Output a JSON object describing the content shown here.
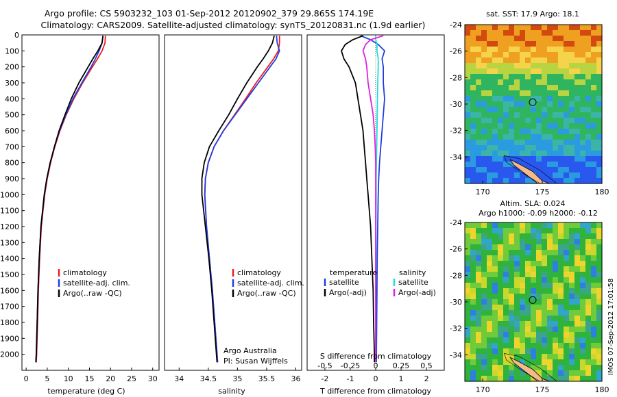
{
  "header": {
    "title_line1": "Argo profile: CS 5903232_103 01-Sep-2012 20120902_379 29.865S 174.19E",
    "title_line2": "Climatology: CARS2009. Satellite-adjusted climatology: synTS_20120831.nc (1.9d earlier)"
  },
  "side_label": "IMOS 07-Sep-2012 17:01:58",
  "colors": {
    "red": "#ee1c1c",
    "blue": "#1f3de0",
    "black": "#000000",
    "cyan": "#22dddd",
    "magenta": "#e020e0"
  },
  "chart_data": [
    {
      "type": "line",
      "panel": "temperature",
      "xlabel": "temperature (deg C)",
      "xlim": [
        -1,
        31.5
      ],
      "ylim": [
        2100,
        0
      ],
      "xticks": [
        "0",
        "5",
        "10",
        "15",
        "20",
        "25",
        "30"
      ],
      "yticks": [
        "0",
        "100",
        "200",
        "300",
        "400",
        "500",
        "600",
        "700",
        "800",
        "900",
        "1000",
        "1100",
        "1200",
        "1300",
        "1400",
        "1500",
        "1600",
        "1700",
        "1800",
        "1900",
        "2000"
      ],
      "legend": [
        "climatology",
        "satellite-adj. clim.",
        "Argo(..raw -QC)"
      ],
      "depth": [
        5,
        50,
        100,
        150,
        200,
        300,
        400,
        500,
        600,
        700,
        800,
        900,
        1000,
        1200,
        1400,
        1600,
        1800,
        2000,
        2050
      ],
      "series": [
        {
          "name": "climatology",
          "color": "red",
          "values": [
            18.8,
            18.7,
            18.0,
            16.9,
            15.7,
            13.4,
            11.3,
            9.5,
            8.0,
            6.8,
            5.8,
            5.0,
            4.4,
            3.6,
            3.2,
            2.9,
            2.7,
            2.5,
            2.4
          ]
        },
        {
          "name": "satellite-adj. clim.",
          "color": "blue",
          "values": [
            18.2,
            18.0,
            17.3,
            16.4,
            15.4,
            13.2,
            11.1,
            9.4,
            7.9,
            6.7,
            5.7,
            4.9,
            4.3,
            3.5,
            3.1,
            2.8,
            2.6,
            2.4,
            2.3
          ]
        },
        {
          "name": "Argo(..raw -QC)",
          "color": "black",
          "values": [
            18.2,
            18.0,
            17.0,
            15.8,
            14.7,
            12.5,
            10.7,
            9.2,
            7.8,
            6.7,
            5.7,
            4.9,
            4.3,
            3.5,
            3.1,
            2.8,
            2.6,
            2.4,
            2.3
          ]
        }
      ]
    },
    {
      "type": "line",
      "panel": "salinity",
      "xlabel": "salinity",
      "xlim": [
        33.75,
        36.1
      ],
      "ylim": [
        2100,
        0
      ],
      "xticks": [
        "34",
        "34.5",
        "35",
        "35.5",
        "36"
      ],
      "legend": [
        "climatology",
        "satellite-adj. clim.",
        "Argo(..raw -QC)"
      ],
      "annotations": [
        "Argo Australia",
        "PI: Susan Wijffels"
      ],
      "depth": [
        5,
        50,
        100,
        150,
        200,
        300,
        400,
        500,
        600,
        700,
        800,
        900,
        1000,
        1200,
        1400,
        1600,
        1800,
        2000,
        2050
      ],
      "series": [
        {
          "name": "climatology",
          "color": "red",
          "values": [
            35.72,
            35.72,
            35.7,
            35.62,
            35.52,
            35.32,
            35.14,
            34.95,
            34.76,
            34.6,
            34.5,
            34.45,
            34.44,
            34.47,
            34.52,
            34.57,
            34.61,
            34.65,
            34.66
          ]
        },
        {
          "name": "satellite-adj. clim.",
          "color": "blue",
          "values": [
            35.67,
            35.68,
            35.72,
            35.66,
            35.56,
            35.36,
            35.16,
            34.96,
            34.76,
            34.6,
            34.5,
            34.45,
            34.44,
            34.47,
            34.52,
            34.57,
            34.61,
            34.65,
            34.66
          ]
        },
        {
          "name": "Argo(..raw -QC)",
          "color": "black",
          "values": [
            35.63,
            35.6,
            35.53,
            35.44,
            35.34,
            35.16,
            35.0,
            34.85,
            34.68,
            34.52,
            34.43,
            34.39,
            34.39,
            34.45,
            34.51,
            34.56,
            34.6,
            34.64,
            34.65
          ]
        }
      ]
    },
    {
      "type": "line",
      "panel": "difference",
      "xlabel": "T difference from climatology",
      "xlabel_top": "S difference from climatology",
      "xlim": [
        -2.7,
        2.7
      ],
      "ylim": [
        2100,
        0
      ],
      "xticks": [
        "-2",
        "-1",
        "0",
        "1",
        "2"
      ],
      "xticks_top": [
        "-0.5",
        "-0.25",
        "0",
        "0.25",
        "0.5"
      ],
      "legend_headers": [
        "temperature",
        "salinity"
      ],
      "legend": [
        "satellite",
        "Argo(-adj)",
        "satellite",
        "Argo(-adj)"
      ],
      "depth": [
        5,
        30,
        60,
        100,
        150,
        200,
        300,
        400,
        500,
        600,
        700,
        800,
        900,
        1000,
        1200,
        1400,
        1600,
        1800,
        2000,
        2050
      ],
      "series": [
        {
          "name": "satellite",
          "color": "blue",
          "values": [
            -0.6,
            -0.2,
            0.1,
            0.35,
            0.25,
            0.3,
            0.3,
            0.35,
            0.3,
            0.25,
            0.2,
            0.15,
            0.12,
            0.1,
            0.08,
            0.06,
            0.05,
            0.04,
            0.03,
            0.03
          ]
        },
        {
          "name": "Argo(-adj)",
          "color": "black",
          "values": [
            -0.5,
            -0.9,
            -1.2,
            -1.35,
            -1.25,
            -1.05,
            -0.8,
            -0.7,
            -0.6,
            -0.5,
            -0.45,
            -0.4,
            -0.35,
            -0.3,
            -0.2,
            -0.15,
            -0.1,
            -0.08,
            -0.05,
            -0.05
          ]
        },
        {
          "name": "satellite",
          "color": "cyan",
          "values": [
            0.0,
            0.0,
            0.05,
            0.05,
            0.1,
            0.1,
            0.08,
            0.07,
            0.06,
            0.05,
            0.04,
            0.03,
            0.02,
            0.02,
            0.01,
            0.01,
            0.0,
            0.0,
            0.0,
            0.0
          ]
        },
        {
          "name": "Argo(-adj)",
          "color": "magenta",
          "values": [
            0.3,
            -0.2,
            -0.4,
            -0.5,
            -0.4,
            -0.35,
            -0.3,
            -0.2,
            -0.1,
            -0.05,
            -0.02,
            0.0,
            0.0,
            0.0,
            0.0,
            0.0,
            0.0,
            0.0,
            0.0,
            0.0
          ]
        }
      ]
    },
    {
      "type": "heatmap",
      "panel": "sst_map",
      "title": "sat. SST: 17.9  Argo: 18.1",
      "xlim": [
        168.5,
        180
      ],
      "ylim": [
        -36,
        -24
      ],
      "xticks": [
        "170",
        "175",
        "180"
      ],
      "yticks": [
        "-24",
        "-26",
        "-28",
        "-30",
        "-32",
        "-34"
      ],
      "marker": [
        174.19,
        -29.865
      ],
      "colors": [
        "#d24a0f",
        "#f0a020",
        "#f5d34a",
        "#b8d440",
        "#2fb560",
        "#3cb5a8",
        "#2a9be0",
        "#2858ee",
        "#f5b98a"
      ]
    },
    {
      "type": "heatmap",
      "panel": "sla_map",
      "title": "Altim. SLA: 0.024",
      "subtitle": "Argo h1000: -0.09  h2000: -0.12",
      "xlim": [
        168.5,
        180
      ],
      "ylim": [
        -36,
        -24
      ],
      "xticks": [
        "170",
        "175",
        "180"
      ],
      "yticks": [
        "-24",
        "-26",
        "-28",
        "-30",
        "-32",
        "-34"
      ],
      "marker": [
        174.19,
        -29.865
      ],
      "colors": [
        "#2fb33c",
        "#6fcb39",
        "#c8d82c",
        "#f0d42e",
        "#3aa58a",
        "#32a6c8",
        "#2f7fe0",
        "#f5b98a"
      ]
    }
  ]
}
